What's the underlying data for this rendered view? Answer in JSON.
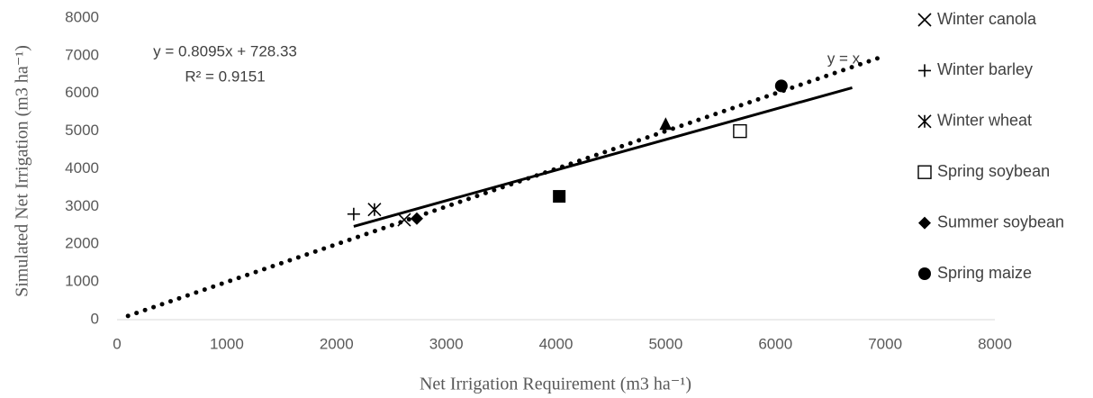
{
  "chart_data": {
    "type": "scatter",
    "x_label": "Net Irrigation Requirement (m3 ha⁻¹)",
    "y_label": "Simulated Net Irrigation (m3 ha⁻¹)",
    "xlim": [
      0,
      8000
    ],
    "ylim": [
      0,
      8000
    ],
    "xticks": [
      0,
      1000,
      2000,
      3000,
      4000,
      5000,
      6000,
      7000,
      8000
    ],
    "yticks": [
      0,
      1000,
      2000,
      3000,
      4000,
      5000,
      6000,
      7000,
      8000
    ],
    "grid": false,
    "legend": "right",
    "series": [
      {
        "name": "Winter canola",
        "marker": "x",
        "color": "#000000",
        "x": [
          2617
        ],
        "values": [
          2650
        ]
      },
      {
        "name": "Winter barley",
        "marker": "plus",
        "color": "#000000",
        "x": [
          2157
        ],
        "values": [
          2800
        ]
      },
      {
        "name": "Winter wheat",
        "marker": "asterisk",
        "color": "#000000",
        "x": [
          2346
        ],
        "values": [
          2920
        ]
      },
      {
        "name": "Spring soybean",
        "marker": "square-open",
        "color": "#000000",
        "x": [
          5677
        ],
        "values": [
          5000
        ]
      },
      {
        "name": "Summer soybean",
        "marker": "diamond",
        "color": "#000000",
        "x": [
          2732
        ],
        "values": [
          2680
        ]
      },
      {
        "name": "Spring maize",
        "marker": "circle",
        "color": "#000000",
        "x": [
          6054
        ],
        "values": [
          6200
        ]
      },
      {
        "marker": "square",
        "color": "#000000",
        "x": [
          4030
        ],
        "values": [
          3270
        ]
      },
      {
        "marker": "triangle",
        "color": "#000000",
        "x": [
          5000
        ],
        "values": [
          5200
        ]
      }
    ],
    "trendline": {
      "x": [
        2157,
        6700
      ],
      "values": [
        2474,
        6152
      ],
      "equation": "y = 0.8095x + 728.33",
      "r2": "R² = 0.9151"
    },
    "identity_line": {
      "x": [
        100,
        7000
      ],
      "values": [
        100,
        7000
      ],
      "label": "y = x"
    }
  }
}
